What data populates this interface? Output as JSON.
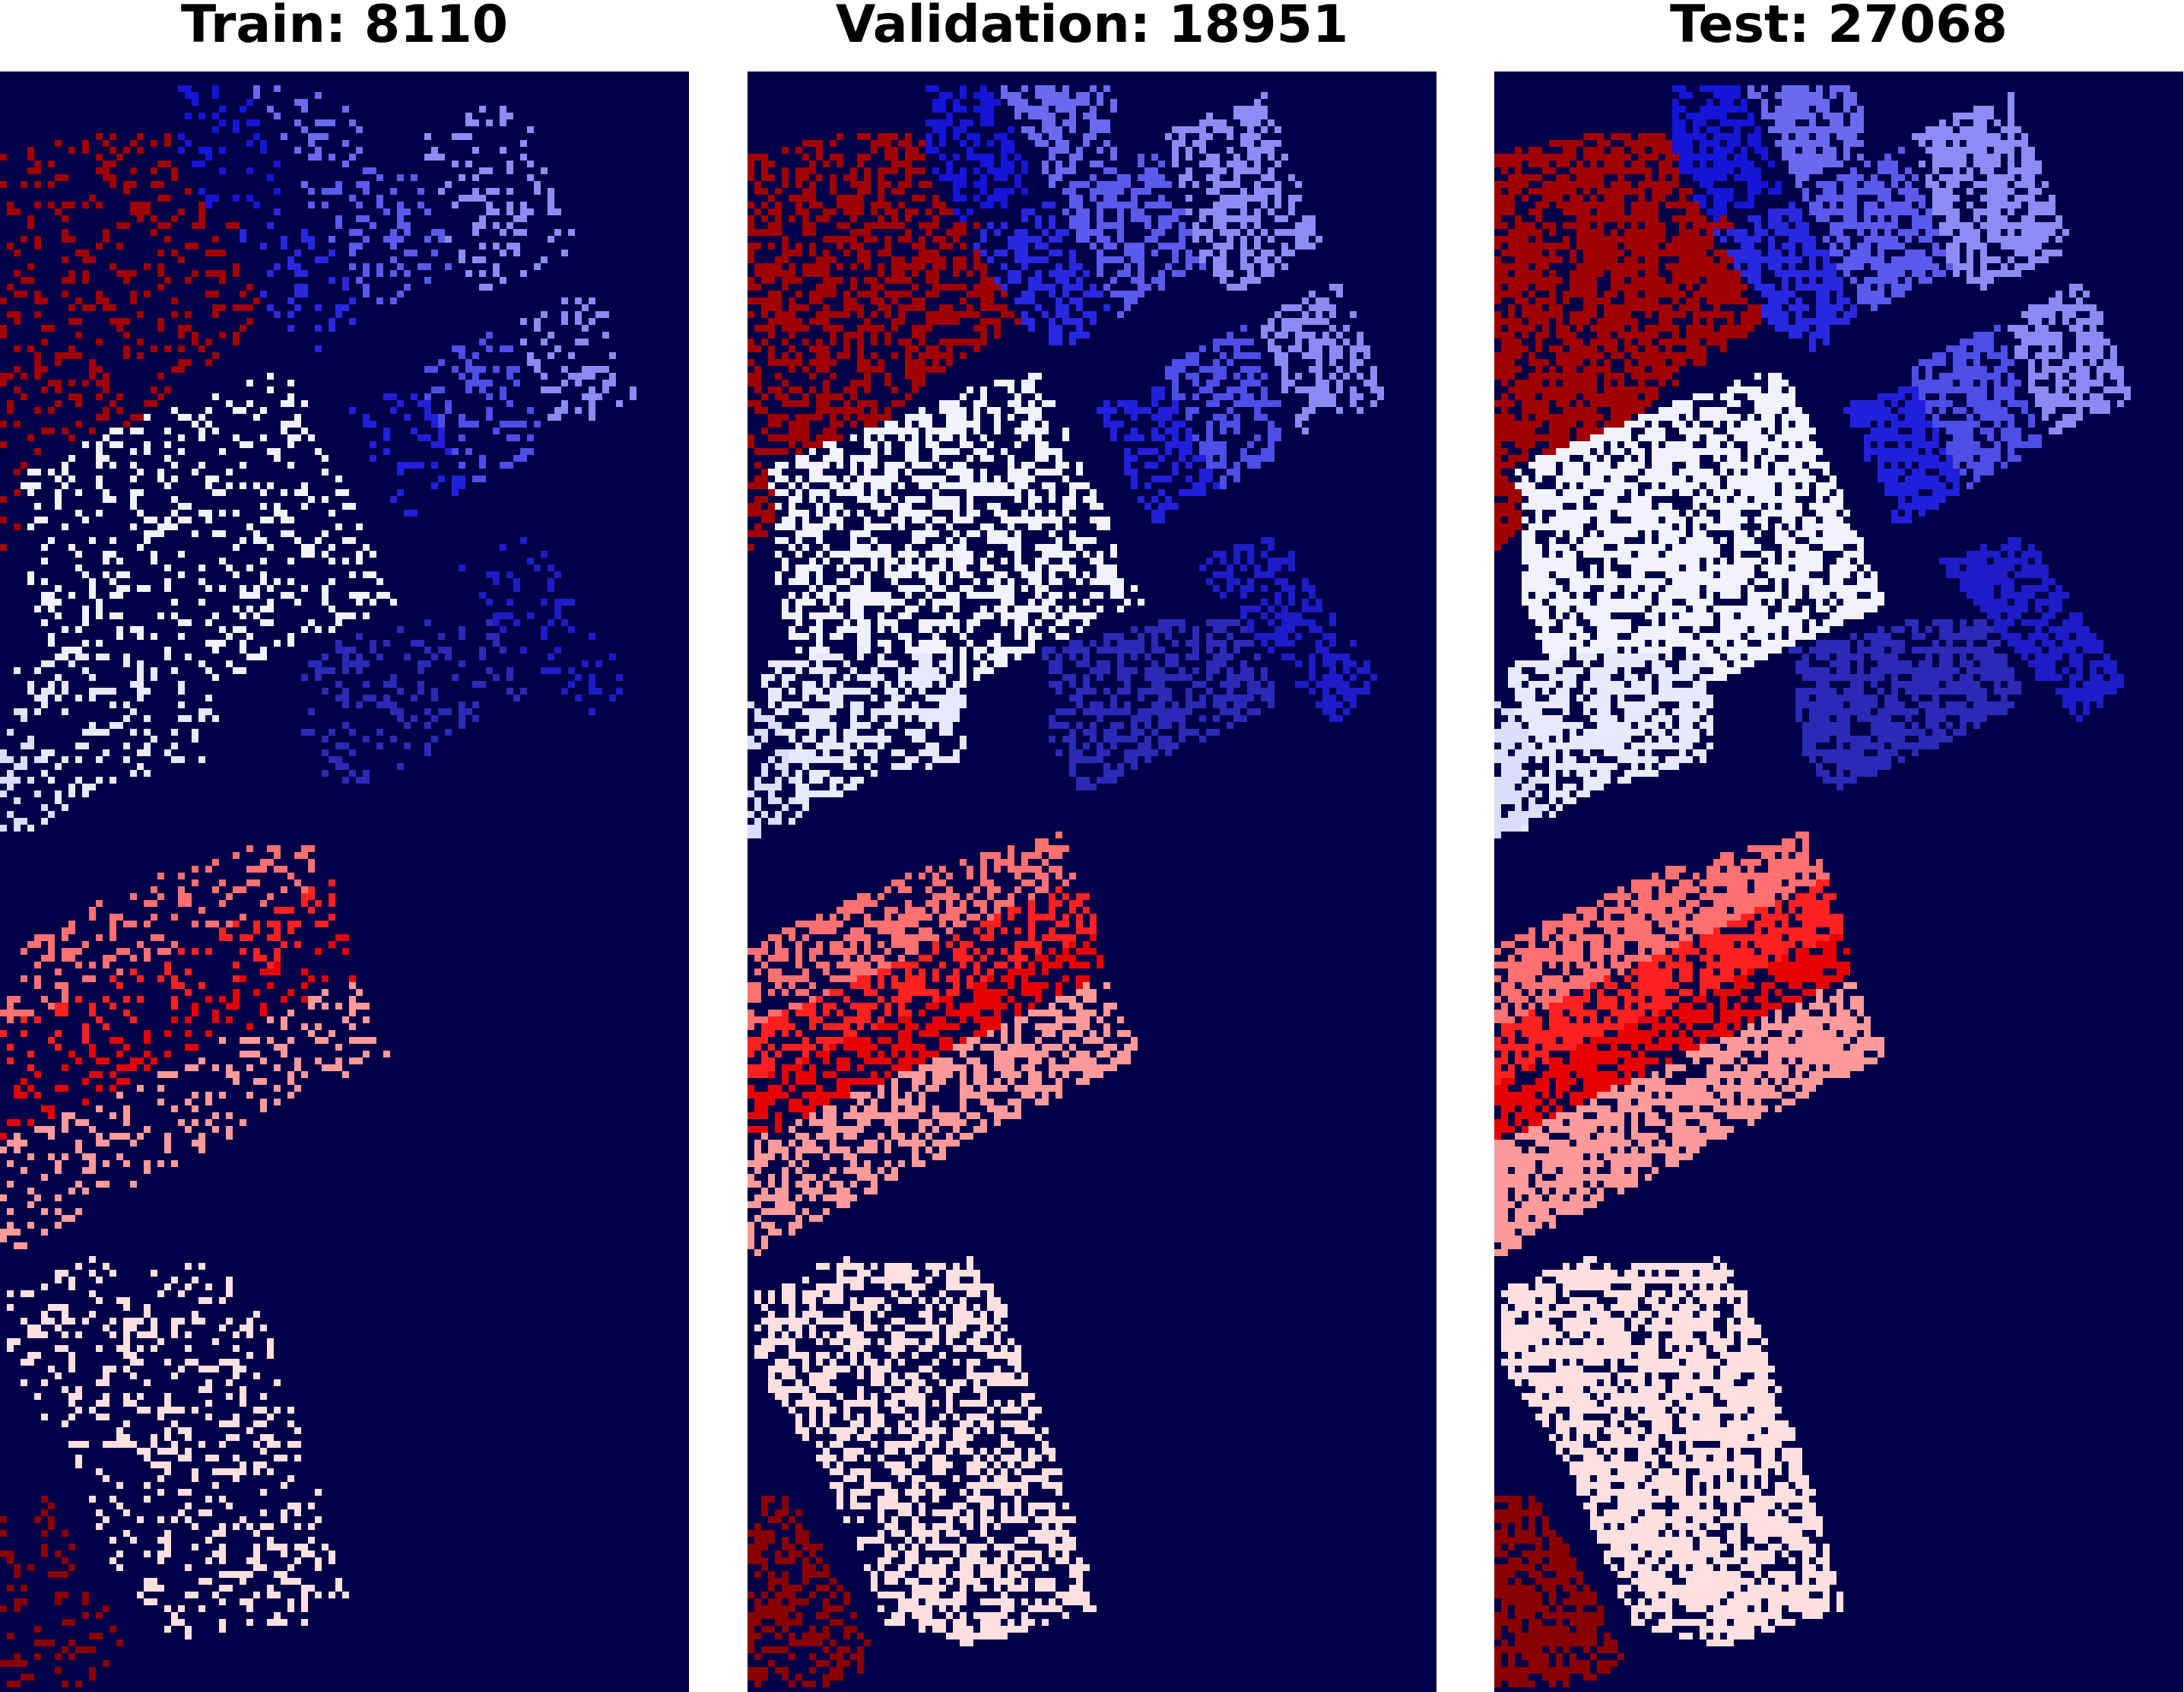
{
  "figure": {
    "background": "#ffffff",
    "map_background": "#000048",
    "colormap": "seismic",
    "colormap_stops": [
      "#00004c",
      "#0000ff",
      "#ffffff",
      "#ff0000",
      "#800000"
    ],
    "panels": [
      {
        "id": "train",
        "title": "Train: 8110",
        "sample_count": 8110,
        "pixel_density": 0.22
      },
      {
        "id": "validation",
        "title": "Validation: 18951",
        "sample_count": 18951,
        "pixel_density": 0.52
      },
      {
        "id": "test",
        "title": "Test: 27068",
        "sample_count": 27068,
        "pixel_density": 0.72
      }
    ]
  }
}
